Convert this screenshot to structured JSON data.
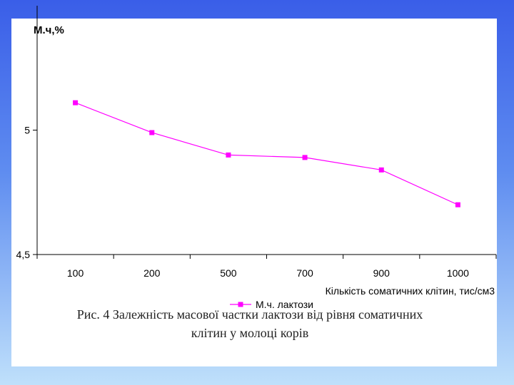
{
  "chart_data": {
    "type": "line",
    "ylabel": "М.ч,%",
    "xlabel": "Кількість соматичних клітин, тис/см3",
    "categories": [
      "100",
      "200",
      "500",
      "700",
      "900",
      "1000"
    ],
    "series": [
      {
        "name": "М.ч. лактози",
        "values": [
          5.11,
          4.99,
          4.9,
          4.89,
          4.84,
          4.7
        ]
      }
    ],
    "ylim": [
      4.5,
      5.5
    ],
    "yticks": [
      {
        "value": 4.5,
        "label": "4,5"
      },
      {
        "value": 5,
        "label": "5"
      }
    ],
    "grid": false,
    "legend": "bottom",
    "color": "#ff00ff"
  },
  "caption": {
    "line1": "Рис. 4  Залежність масової частки лактози від рівня соматичних",
    "line2": "клітин у молоці корів"
  }
}
